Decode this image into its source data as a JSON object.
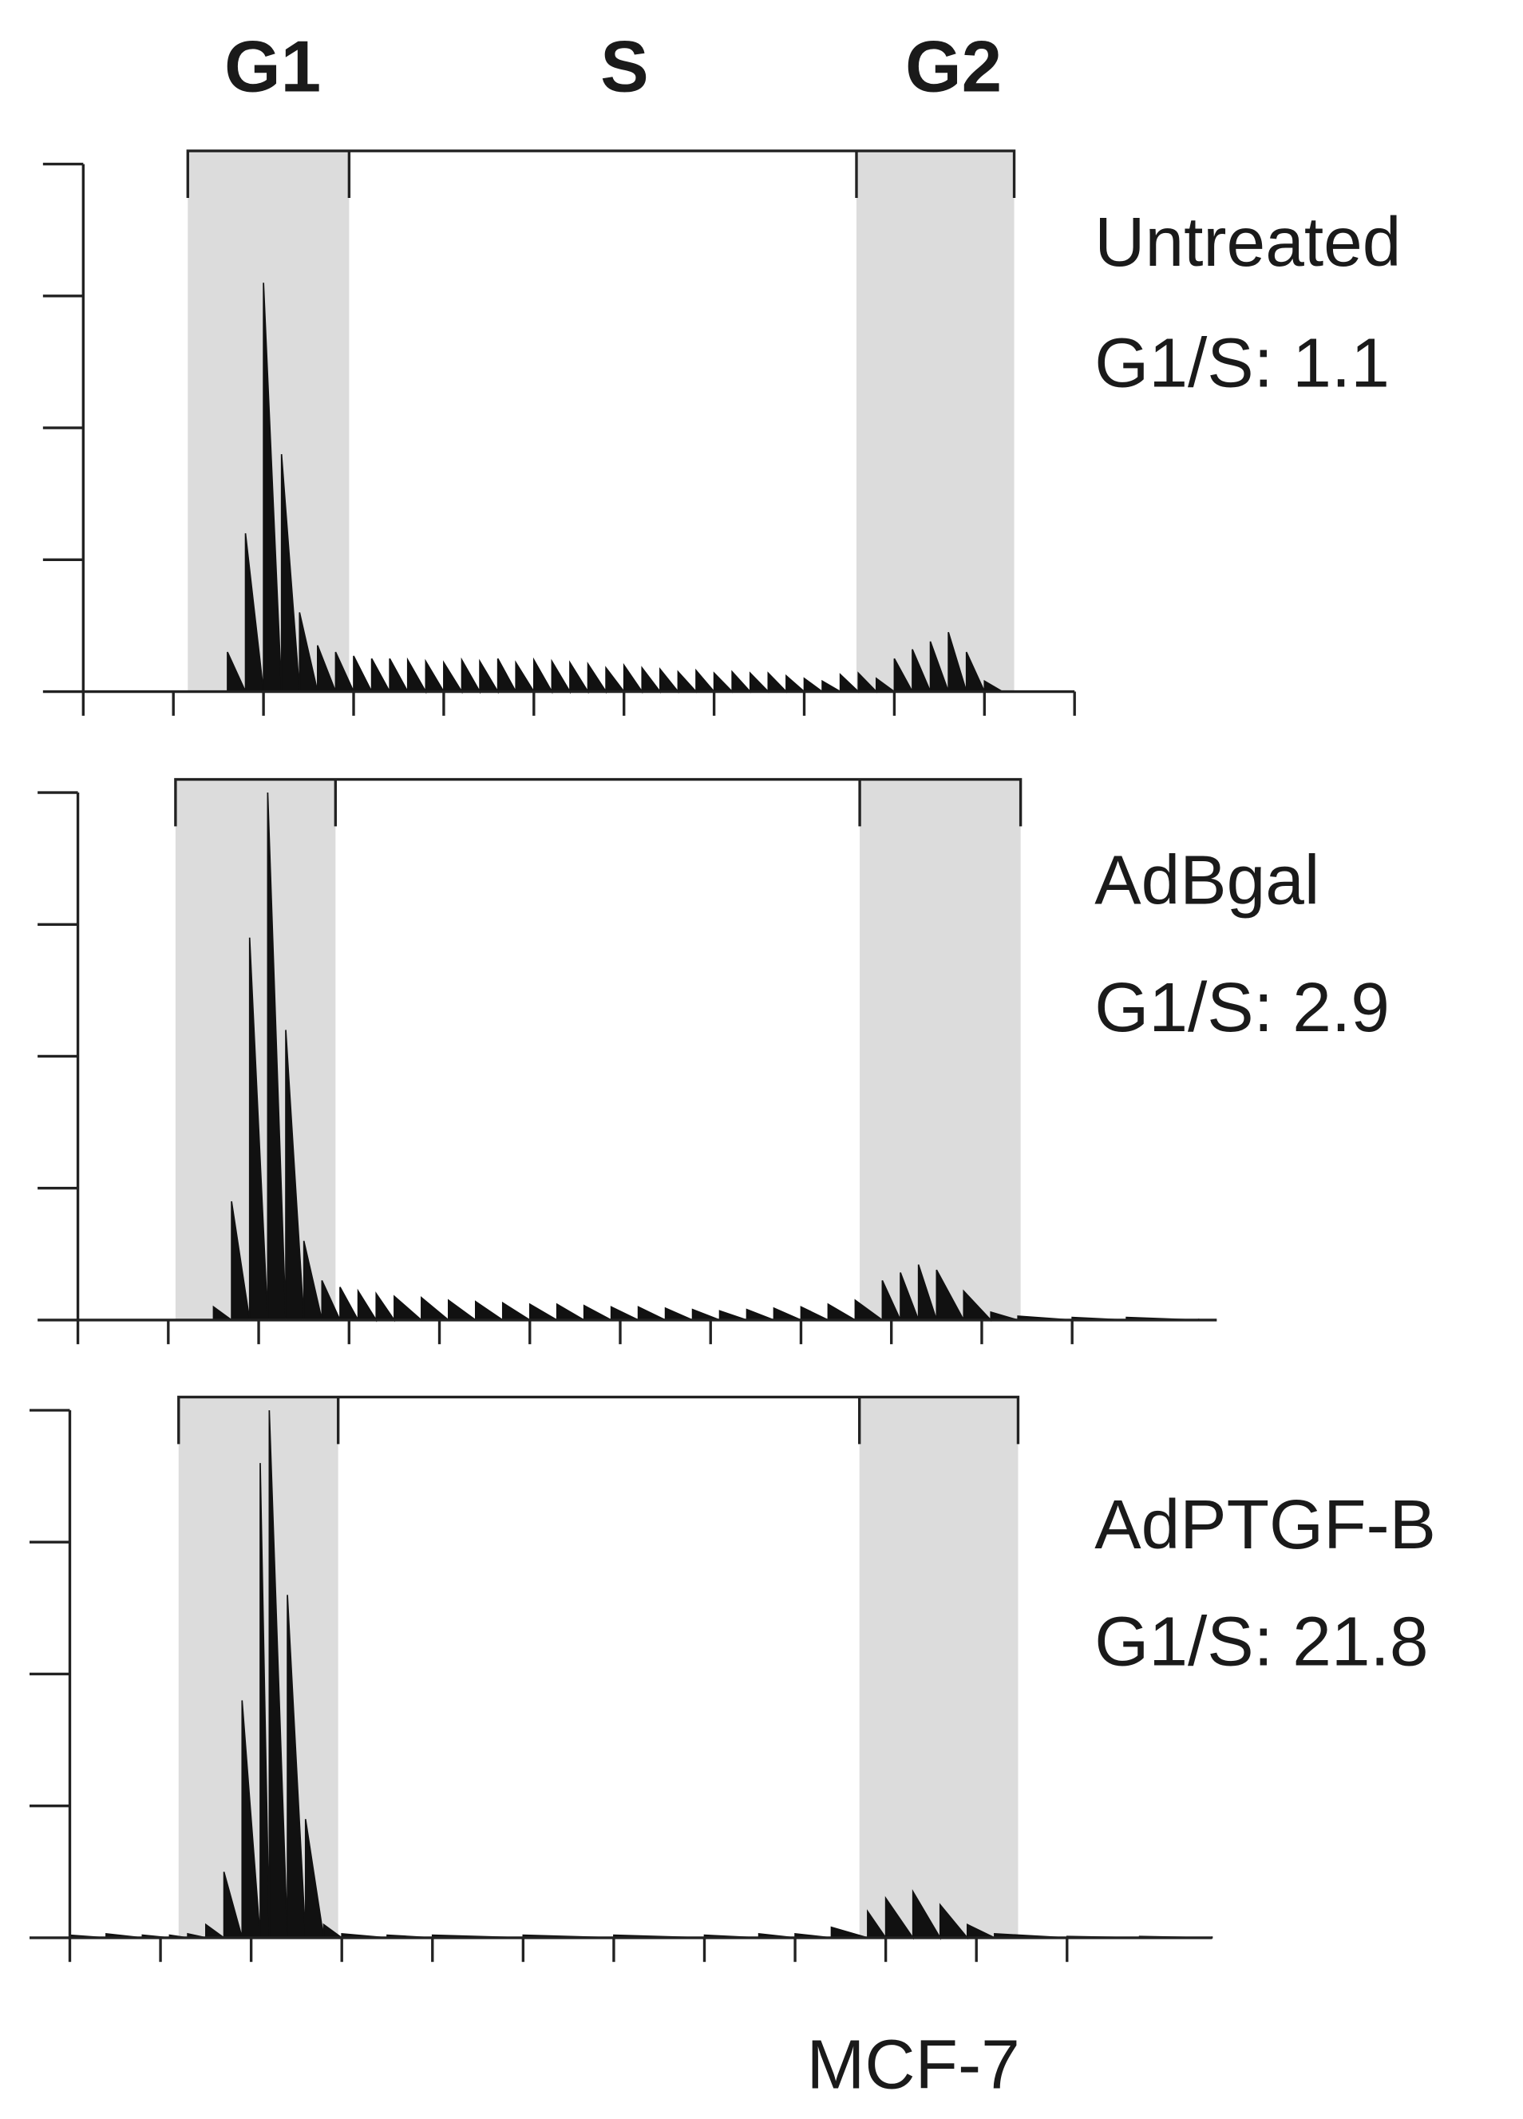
{
  "chart_data": [
    {
      "type": "area",
      "phase_labels": [
        "G1",
        "S",
        "G2"
      ],
      "label": "Untreated",
      "ratio": "G1/S: 1.1",
      "color": "#111111",
      "xlim": [
        0,
        11
      ],
      "ylim": [
        0,
        4.1
      ],
      "xticks": [
        0,
        1,
        2,
        3,
        4,
        5,
        6,
        7,
        8,
        9,
        10,
        11
      ],
      "yticks": [
        0,
        1,
        2,
        3,
        4
      ],
      "gates": [
        [
          1.16,
          2.95
        ],
        [
          8.58,
          10.33
        ]
      ],
      "x": [
        1.4,
        1.6,
        1.8,
        2.0,
        2.2,
        2.4,
        2.6,
        2.8,
        3.0,
        3.2,
        3.4,
        3.6,
        3.8,
        4.0,
        4.2,
        4.4,
        4.6,
        4.8,
        5.0,
        5.2,
        5.4,
        5.6,
        5.8,
        6.0,
        6.2,
        6.4,
        6.6,
        6.8,
        7.0,
        7.2,
        7.4,
        7.6,
        7.8,
        8.0,
        8.2,
        8.4,
        8.6,
        8.8,
        9.0,
        9.2,
        9.4,
        9.6,
        9.8,
        10.0,
        10.2
      ],
      "values": [
        0,
        0.3,
        1.2,
        3.1,
        1.8,
        0.6,
        0.35,
        0.3,
        0.27,
        0.25,
        0.25,
        0.24,
        0.23,
        0.22,
        0.24,
        0.23,
        0.25,
        0.22,
        0.24,
        0.23,
        0.22,
        0.21,
        0.18,
        0.2,
        0.18,
        0.17,
        0.15,
        0.16,
        0.14,
        0.15,
        0.14,
        0.14,
        0.12,
        0.1,
        0.08,
        0.13,
        0.14,
        0.1,
        0.25,
        0.32,
        0.38,
        0.45,
        0.3,
        0.08,
        0
      ]
    },
    {
      "type": "area",
      "label": "AdBgal",
      "ratio": "G1/S: 2.9",
      "color": "#111111",
      "xlim": [
        0,
        12.6
      ],
      "ylim": [
        0,
        4.1
      ],
      "xticks": [
        0,
        1,
        2,
        3,
        4,
        5,
        6,
        7,
        8,
        9,
        10,
        11
      ],
      "yticks": [
        0,
        1,
        2,
        3,
        4
      ],
      "gates": [
        [
          1.08,
          2.85
        ],
        [
          8.65,
          10.43
        ]
      ],
      "x": [
        1.3,
        1.5,
        1.7,
        1.9,
        2.1,
        2.3,
        2.5,
        2.7,
        2.9,
        3.1,
        3.3,
        3.5,
        3.8,
        4.1,
        4.4,
        4.7,
        5.0,
        5.3,
        5.6,
        5.9,
        6.2,
        6.5,
        6.8,
        7.1,
        7.4,
        7.7,
        8.0,
        8.3,
        8.6,
        8.9,
        9.1,
        9.3,
        9.5,
        9.8,
        10.1,
        10.4,
        11.0,
        11.6,
        12.4
      ],
      "values": [
        0,
        0.1,
        0.9,
        2.9,
        4.0,
        2.2,
        0.6,
        0.3,
        0.25,
        0.22,
        0.2,
        0.18,
        0.17,
        0.15,
        0.14,
        0.13,
        0.12,
        0.12,
        0.11,
        0.1,
        0.1,
        0.09,
        0.08,
        0.07,
        0.08,
        0.09,
        0.1,
        0.12,
        0.15,
        0.3,
        0.36,
        0.42,
        0.38,
        0.22,
        0.06,
        0.03,
        0.02,
        0.02,
        0.01
      ]
    },
    {
      "type": "area",
      "label": "AdPTGF-B",
      "ratio": "G1/S: 21.8",
      "color": "#111111",
      "xlim": [
        0,
        12.6
      ],
      "ylim": [
        0,
        4.1
      ],
      "xticks": [
        0,
        1,
        2,
        3,
        4,
        5,
        6,
        7,
        8,
        9,
        10,
        11
      ],
      "yticks": [
        0,
        1,
        2,
        3,
        4
      ],
      "gates": [
        [
          1.2,
          2.96
        ],
        [
          8.71,
          10.46
        ]
      ],
      "x": [
        0.0,
        0.4,
        0.8,
        1.1,
        1.3,
        1.5,
        1.7,
        1.9,
        2.1,
        2.2,
        2.4,
        2.6,
        2.8,
        3.0,
        3.5,
        4.0,
        5.0,
        6.0,
        7.0,
        7.6,
        8.0,
        8.4,
        8.8,
        9.0,
        9.3,
        9.6,
        9.9,
        10.2,
        11.0,
        11.8,
        12.6
      ],
      "values": [
        0.02,
        0.03,
        0.02,
        0.02,
        0.03,
        0.1,
        0.5,
        1.8,
        3.6,
        4.0,
        2.6,
        0.9,
        0.1,
        0.03,
        0.02,
        0.02,
        0.02,
        0.02,
        0.02,
        0.03,
        0.03,
        0.08,
        0.2,
        0.3,
        0.35,
        0.25,
        0.1,
        0.03,
        0.01,
        0.01,
        0.01
      ]
    }
  ],
  "footer": "MCF-7"
}
